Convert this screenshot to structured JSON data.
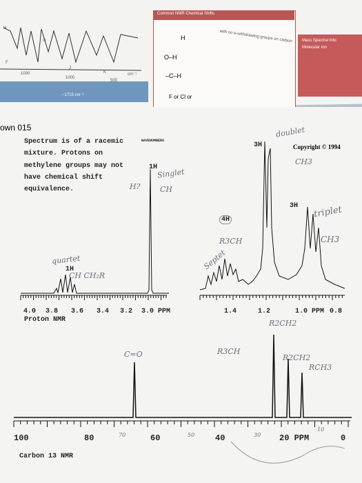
{
  "header": {
    "chart_title": "Common NMR Chemical Shifts",
    "side_title": "Mass Spectral Info",
    "side_sub": "Molecular Ion",
    "ir_labels": [
      "1000",
      "1000",
      "500",
      "cm⁻¹",
      "~1715 cm⁻¹",
      "H",
      "G",
      "F",
      "J",
      "K"
    ],
    "shift_labels": [
      "H",
      "O–H",
      "–C–H",
      "F or Cl or",
      "with no e-withdrawing groups on carbon"
    ]
  },
  "page": {
    "heading": "own 015",
    "notice_lines": [
      "Spectrum is of a racemic",
      "mixture.  Protons on",
      "methylene groups may not",
      "have chemical shift",
      "equivalence."
    ],
    "wavenumbers": "WAVENUMBERS",
    "copyright": "Copyright © 1994",
    "proton_left": {
      "integrals": [
        "1H",
        "1H"
      ],
      "ticks": [
        "4.0",
        "3.8",
        "3.6",
        "3.4",
        "3.2",
        "3.0 PPM"
      ],
      "caption": "Proton NMR"
    },
    "proton_right": {
      "integrals": [
        "3H",
        "4H",
        "3H"
      ],
      "ticks": [
        "1.4",
        "1.2",
        "1.0 PPM",
        "0.8"
      ]
    },
    "carbon": {
      "ticks": [
        "100",
        "80",
        "60",
        "40",
        "20 PPM",
        "0"
      ],
      "caption": "Carbon 13 NMR"
    }
  },
  "handwriting": {
    "doublet": "doublet",
    "doublet_ch": "CH3",
    "singlet": "Singlet",
    "h_q": "H?",
    "ch_small": "CH",
    "quartet": "quartet",
    "quartet_ch": "CH CH₂R",
    "triplet": "triplet",
    "triplet_ch": "CH3",
    "r3ch": "R3CH",
    "septet": "Septet",
    "r2ch2": "R2CH2",
    "carbonyl": "C=O",
    "c_r3ch": "R3CH",
    "c_r2ch2": "R2CH2",
    "c_rch3": "RCH3",
    "c_ticks": [
      "70",
      "50",
      "30",
      "10"
    ]
  }
}
